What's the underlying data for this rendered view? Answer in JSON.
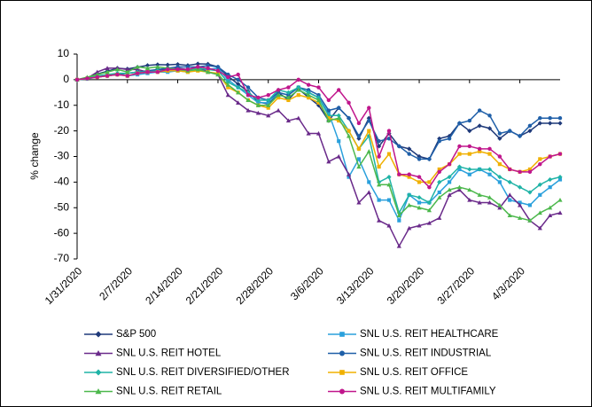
{
  "chart_data": {
    "type": "line",
    "y_label": "% change",
    "categories": [
      "1/31/2020",
      null,
      null,
      null,
      null,
      "2/7/2020",
      null,
      null,
      null,
      null,
      "2/14/2020",
      null,
      null,
      null,
      "2/21/2020",
      null,
      null,
      null,
      null,
      "2/28/2020",
      null,
      null,
      null,
      null,
      "3/6/2020",
      null,
      null,
      null,
      null,
      "3/13/2020",
      null,
      null,
      null,
      null,
      "3/20/2020",
      null,
      null,
      null,
      null,
      "3/27/2020",
      null,
      null,
      null,
      null,
      "4/3/2020",
      null,
      null,
      null,
      null
    ],
    "ylim": [
      -70,
      10
    ],
    "yticks": [
      10,
      0,
      -10,
      -20,
      -30,
      -40,
      -50,
      -60,
      -70
    ],
    "series": [
      {
        "name": "S&P 500",
        "color": "#1f3a7a",
        "marker": "diamond",
        "values": [
          0,
          0.7,
          2.2,
          3.3,
          4.5,
          4.2,
          4.9,
          5.6,
          5.9,
          5.8,
          6.0,
          5.6,
          6.2,
          6.1,
          5.0,
          1.3,
          -1.7,
          -4.6,
          -8.7,
          -9.5,
          -5.1,
          -7.8,
          -3.6,
          -6.9,
          -10,
          -16,
          -11,
          -15,
          -23,
          -15,
          -26,
          -21,
          -26,
          -27,
          -30,
          -31,
          -23,
          -22,
          -17,
          -20,
          -18,
          -19,
          -23,
          -20,
          -22,
          -20,
          -17,
          -17,
          -17
        ]
      },
      {
        "name": "SNL U.S. REIT HEALTHCARE",
        "color": "#2aa0dc",
        "marker": "square",
        "values": [
          0,
          0.3,
          1,
          1.5,
          2,
          1.5,
          2,
          2.5,
          3,
          3,
          3.5,
          3,
          4,
          4,
          4.5,
          0,
          -3,
          -6,
          -9,
          -9,
          -5,
          -6,
          -3,
          -5,
          -7,
          -13,
          -24,
          -38,
          -31,
          -40,
          -47,
          -47,
          -55,
          -45,
          -48,
          -48,
          -44,
          -40,
          -35,
          -37,
          -35,
          -37,
          -40,
          -47,
          -48,
          -49,
          -45,
          -42,
          -39
        ]
      },
      {
        "name": "SNL U.S. REIT HOTEL",
        "color": "#6a2a8a",
        "marker": "triangle",
        "values": [
          0,
          0.5,
          3,
          4.5,
          4.5,
          4,
          4,
          3,
          4,
          4,
          4.5,
          4,
          5,
          3,
          2,
          -6,
          -9,
          -12,
          -13,
          -14,
          -12,
          -16,
          -15,
          -21,
          -21,
          -32,
          -30,
          -37,
          -48,
          -44,
          -55,
          -57,
          -65,
          -58,
          -57,
          -56,
          -54,
          -45,
          -43,
          -47,
          -48,
          -48,
          -50,
          -45,
          -49,
          -55,
          -58,
          -53,
          -52
        ]
      },
      {
        "name": "SNL U.S. REIT INDUSTRIAL",
        "color": "#1f5fa8",
        "marker": "circle",
        "values": [
          0,
          0.5,
          1,
          1.5,
          2,
          2.5,
          3,
          3.5,
          4,
          4.5,
          5,
          5,
          5,
          5.5,
          5,
          2,
          0,
          -3,
          -7,
          -8,
          -5,
          -6,
          -3,
          -4,
          -6,
          -12,
          -11,
          -15,
          -22,
          -16,
          -24,
          -23,
          -26,
          -29,
          -31,
          -31,
          -24,
          -23,
          -17,
          -16,
          -12,
          -14,
          -21,
          -20,
          -22,
          -18,
          -15,
          -15,
          -15
        ]
      },
      {
        "name": "SNL U.S. REIT DIVERSIFIED/OTHER",
        "color": "#1fb3a6",
        "marker": "diamond",
        "values": [
          0,
          0.5,
          1.5,
          2,
          2.5,
          2.5,
          3,
          3,
          3.5,
          3.5,
          4,
          4,
          4.5,
          4,
          3.5,
          -1,
          -3,
          -5,
          -8,
          -8,
          -4,
          -5,
          -3,
          -5,
          -7,
          -14,
          -14,
          -20,
          -27,
          -22,
          -40,
          -38,
          -52,
          -45,
          -46,
          -48,
          -40,
          -38,
          -34,
          -35,
          -35,
          -35,
          -38,
          -40,
          -42,
          -44,
          -41,
          -39,
          -38
        ]
      },
      {
        "name": "SNL U.S. REIT OFFICE",
        "color": "#f0b000",
        "marker": "square",
        "values": [
          0,
          0.5,
          1,
          1.5,
          2,
          1.5,
          2.5,
          3,
          3,
          3.5,
          3.5,
          3,
          3.5,
          3,
          2.5,
          -3,
          -5,
          -8,
          -10,
          -11,
          -7,
          -8,
          -6,
          -7,
          -9,
          -15,
          -16,
          -20,
          -27,
          -20,
          -34,
          -29,
          -37,
          -38,
          -40,
          -40,
          -35,
          -33,
          -29,
          -29,
          -28,
          -29,
          -33,
          -35,
          -36,
          -35,
          -31,
          -30,
          -29
        ]
      },
      {
        "name": "SNL U.S. REIT RETAIL",
        "color": "#4cb84c",
        "marker": "triangle",
        "values": [
          0,
          1,
          2,
          3,
          4,
          3,
          5,
          4.5,
          5,
          4.5,
          4,
          3.5,
          4,
          3,
          2,
          -2,
          -5,
          -8,
          -10,
          -10,
          -6,
          -7,
          -4,
          -6,
          -8,
          -16,
          -15,
          -22,
          -34,
          -28,
          -41,
          -41,
          -53,
          -49,
          -50,
          -51,
          -46,
          -43,
          -42,
          -43,
          -45,
          -46,
          -49,
          -53,
          -54,
          -55,
          -52,
          -50,
          -47
        ]
      },
      {
        "name": "SNL U.S. REIT MULTIFAMILY",
        "color": "#c0168c",
        "marker": "circle",
        "values": [
          0,
          0.5,
          1,
          1.5,
          2,
          1.5,
          2.5,
          3,
          3,
          4,
          4,
          4,
          5,
          4.5,
          3.5,
          1,
          2,
          -6,
          -7,
          -6,
          -4,
          -3,
          0,
          -2,
          -3,
          -8,
          -4,
          -9,
          -17,
          -11,
          -30,
          -20,
          -37,
          -37,
          -38,
          -42,
          -36,
          -33,
          -26,
          -26,
          -27,
          -27,
          -30,
          -35,
          -36,
          -36,
          -33,
          -30,
          -29
        ]
      }
    ]
  }
}
